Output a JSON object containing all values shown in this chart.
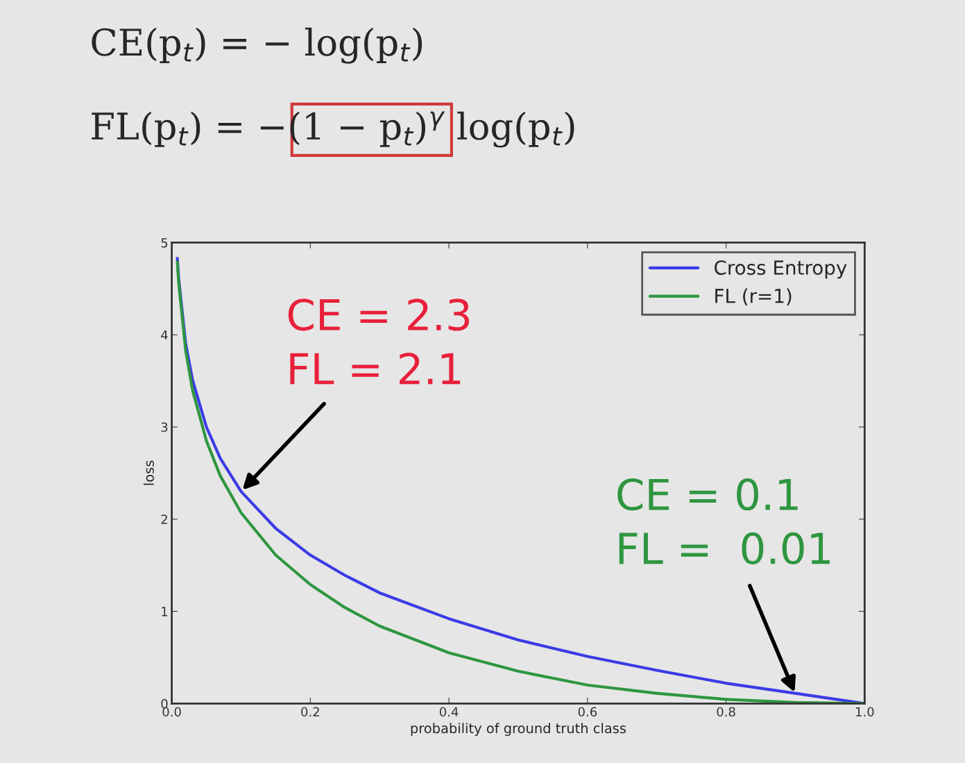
{
  "chart_data": {
    "type": "line",
    "xlabel": "probability of ground truth class",
    "ylabel": "loss",
    "xlim": [
      0,
      1
    ],
    "ylim": [
      0,
      5
    ],
    "xticks": [
      {
        "value": 0,
        "label": "0.0"
      },
      0.2,
      0.4,
      0.6,
      0.8,
      {
        "value": 1,
        "label": "1.0"
      }
    ],
    "yticks": [
      0,
      1,
      2,
      3,
      4,
      5
    ],
    "x": [
      0.008,
      0.01,
      0.02,
      0.03,
      0.05,
      0.07,
      0.1,
      0.15,
      0.2,
      0.25,
      0.3,
      0.4,
      0.5,
      0.6,
      0.7,
      0.8,
      0.9,
      1.0
    ],
    "series": [
      {
        "name": "Cross Entropy",
        "color": "#3b3be6",
        "values": [
          4.83,
          4.61,
          3.91,
          3.51,
          3.0,
          2.66,
          2.3,
          1.9,
          1.61,
          1.39,
          1.2,
          0.92,
          0.69,
          0.51,
          0.36,
          0.22,
          0.11,
          0
        ]
      },
      {
        "name": "FL (r=1)",
        "color": "#2e9640",
        "values": [
          4.79,
          4.56,
          3.83,
          3.4,
          2.85,
          2.47,
          2.07,
          1.61,
          1.29,
          1.04,
          0.84,
          0.55,
          0.35,
          0.2,
          0.11,
          0.045,
          0.011,
          0
        ]
      }
    ],
    "legend": "top right",
    "grid": false,
    "marker": "none",
    "line_style": "solid",
    "annotations": [
      "CE(p$_{t}$) = − log(p$_{t}$)",
      "FL(p$_{t}$) = −(1 − p$_{t}$)$^{γ}$ log(p$_{t}$)",
      {
        "text": "CE = 2.3\nFL = 2.1",
        "x": 0.1,
        "y": 2.3
      },
      {
        "text": "CE = 0.1\nFL =  0.01",
        "x": 0.9,
        "y": 0.1
      }
    ]
  }
}
